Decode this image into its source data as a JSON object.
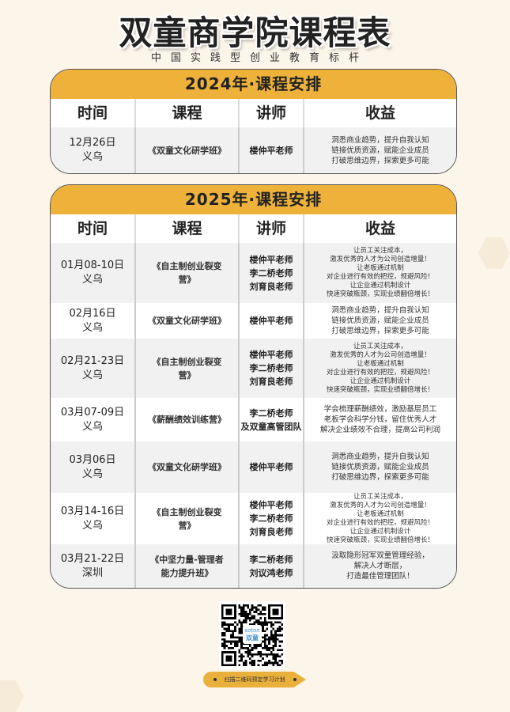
{
  "title": "双童商学院课程表",
  "subtitle": "中国实践型创业教育标杆",
  "columns": [
    "时间",
    "课程",
    "讲师",
    "收益"
  ],
  "colors": {
    "accent": "#eeb23a",
    "background": "#fcf5ea",
    "row_alt": "#f1f1f1"
  },
  "schedule_2024": {
    "heading": "2024年·课程安排",
    "rows": [
      {
        "date": "12月26日",
        "place": "义乌",
        "course": "《双童文化研学班》",
        "teachers": [
          "楼仲平老师"
        ],
        "benefits": [
          "洞悉商业趋势，提升自我认知",
          "链接优质资源，赋能企业成员",
          "打破思维边界，探索更多可能"
        ]
      }
    ]
  },
  "schedule_2025": {
    "heading": "2025年·课程安排",
    "rows": [
      {
        "date": "01月08-10日",
        "place": "义乌",
        "course": "《自主制创业裂变营》",
        "teachers": [
          "楼仲平老师",
          "李二桥老师",
          "刘育良老师"
        ],
        "benefits": [
          "让员工关注成本，",
          "激发优秀的人才为公司创造增量！",
          "让老板通过机制",
          "对企业进行有效的把控，规避风险！",
          "让企业通过机制设计",
          "快速突破瓶颈，实现业绩翻倍增长！"
        ]
      },
      {
        "date": "02月16日",
        "place": "义乌",
        "course": "《双童文化研学班》",
        "teachers": [
          "楼仲平老师"
        ],
        "benefits": [
          "洞悉商业趋势，提升自我认知",
          "链接优质资源，赋能企业成员",
          "打破思维边界，探索更多可能"
        ]
      },
      {
        "date": "02月21-23日",
        "place": "义乌",
        "course": "《自主制创业裂变营》",
        "teachers": [
          "楼仲平老师",
          "李二桥老师",
          "刘育良老师"
        ],
        "benefits": [
          "让员工关注成本，",
          "激发优秀的人才为公司创造增量！",
          "让老板通过机制",
          "对企业进行有效的把控，规避风险！",
          "让企业通过机制设计",
          "快速突破瓶颈，实现业绩翻倍增长！"
        ]
      },
      {
        "date": "03月07-09日",
        "place": "义乌",
        "course": "《薪酬绩效训练营》",
        "teachers": [
          "李二桥老师",
          "及双童高管团队"
        ],
        "benefits": [
          "学会梳理薪酬绩效，激励基层员工",
          "老板学会科学分钱，留住优秀人才",
          "解决企业绩效不合理，提高公司利润"
        ]
      },
      {
        "date": "03月06日",
        "place": "义乌",
        "course": "《双童文化研学班》",
        "teachers": [
          "楼仲平老师"
        ],
        "benefits": [
          "洞悉商业趋势，提升自我认知",
          "链接优质资源，赋能企业成员",
          "打破思维边界，探索更多可能"
        ]
      },
      {
        "date": "03月14-16日",
        "place": "义乌",
        "course": "《自主制创业裂变营》",
        "teachers": [
          "楼仲平老师",
          "李二桥老师",
          "刘育良老师"
        ],
        "benefits": [
          "让员工关注成本，",
          "激发优秀的人才为公司创造增量！",
          "让老板通过机制",
          "对企业进行有效的把控，规避风险！",
          "让企业通过机制设计",
          "快速突破瓶颈，实现业绩翻倍增长！"
        ]
      },
      {
        "date": "03月21-22日",
        "place": "深圳",
        "course": "《中坚力量-管理者能力提升班》",
        "teachers": [
          "李二桥老师",
          "刘议鸿老师"
        ],
        "benefits": [
          "汲取隐形冠军双童管理经验，",
          "解决人才断层，",
          "打造最佳管理团队！"
        ]
      }
    ]
  },
  "qr": {
    "logo_text": [
      "soton",
      "双童"
    ],
    "caption": "扫描二维码预定学习计划"
  }
}
